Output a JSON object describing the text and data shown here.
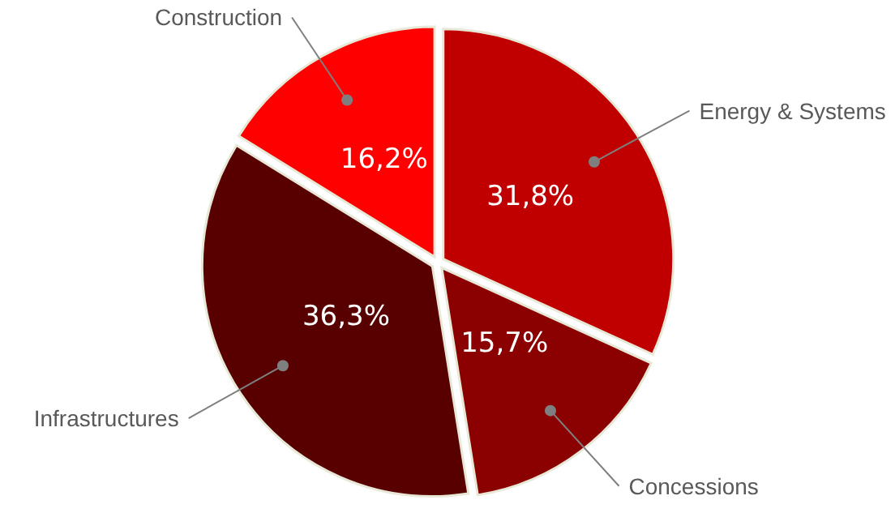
{
  "chart_data": {
    "type": "pie",
    "categories": [
      "Energy & Systems",
      "Concessions",
      "Infrastructures",
      "Construction"
    ],
    "values": [
      31.8,
      15.7,
      36.3,
      16.2
    ],
    "colors": [
      "#c00000",
      "#8b0000",
      "#580000",
      "#ff0000"
    ],
    "value_labels": [
      "31,8%",
      "15,7%",
      "36,3%",
      "16,2%"
    ]
  }
}
